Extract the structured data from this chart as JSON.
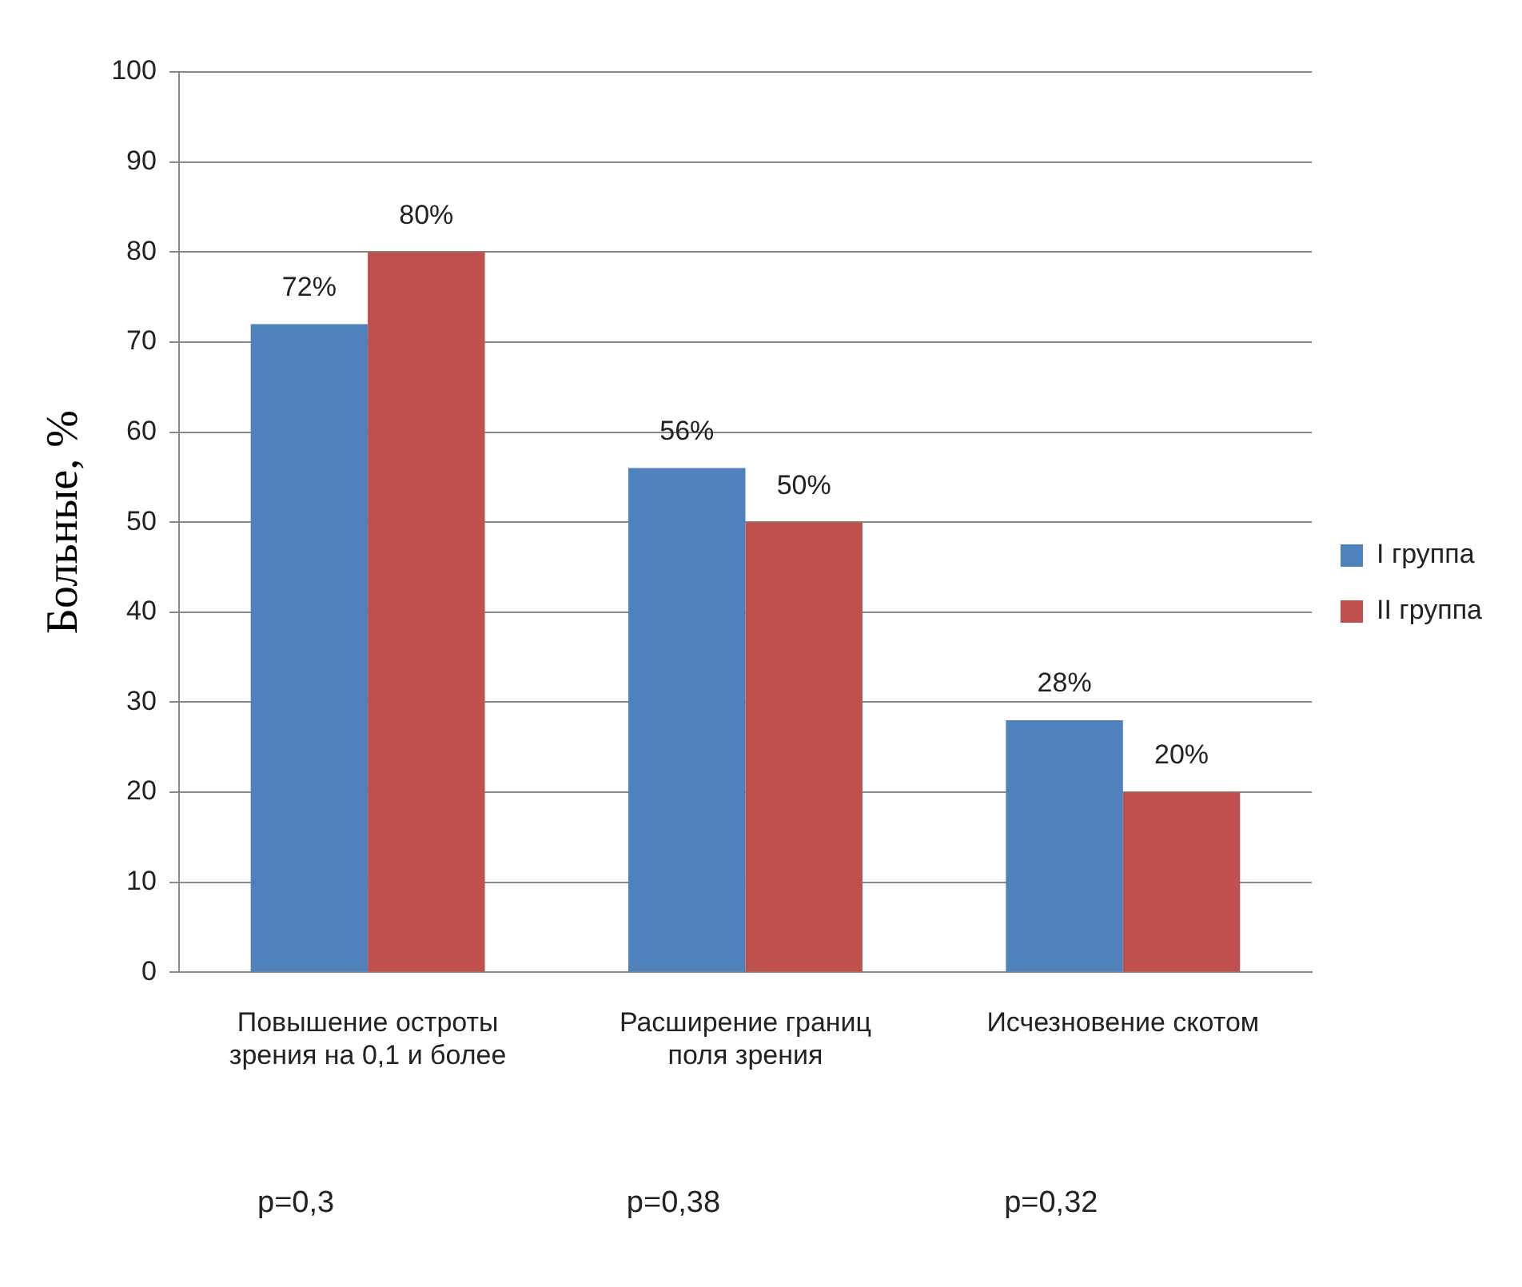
{
  "chart_data": {
    "type": "bar",
    "ylabel": "Больные, %",
    "categories": [
      "Повышение остроты зрения на 0,1 и более",
      "Расширение границ поля зрения",
      "Исчезновение скотом"
    ],
    "series": [
      {
        "name": "I группа",
        "color": "#4f81bd",
        "values": [
          72,
          56,
          28
        ],
        "value_labels": [
          "72%",
          "56%",
          "28%"
        ]
      },
      {
        "name": "II группа",
        "color": "#c0504d",
        "values": [
          80,
          50,
          20
        ],
        "value_labels": [
          "80%",
          "50%",
          "20%"
        ]
      }
    ],
    "ylim": [
      0,
      100
    ],
    "yticks": [
      0,
      10,
      20,
      30,
      40,
      50,
      60,
      70,
      80,
      90,
      100
    ],
    "grid": "y",
    "legend": "right",
    "annotations": [
      "p=0,3",
      "p=0,38",
      "p=0,32"
    ]
  }
}
